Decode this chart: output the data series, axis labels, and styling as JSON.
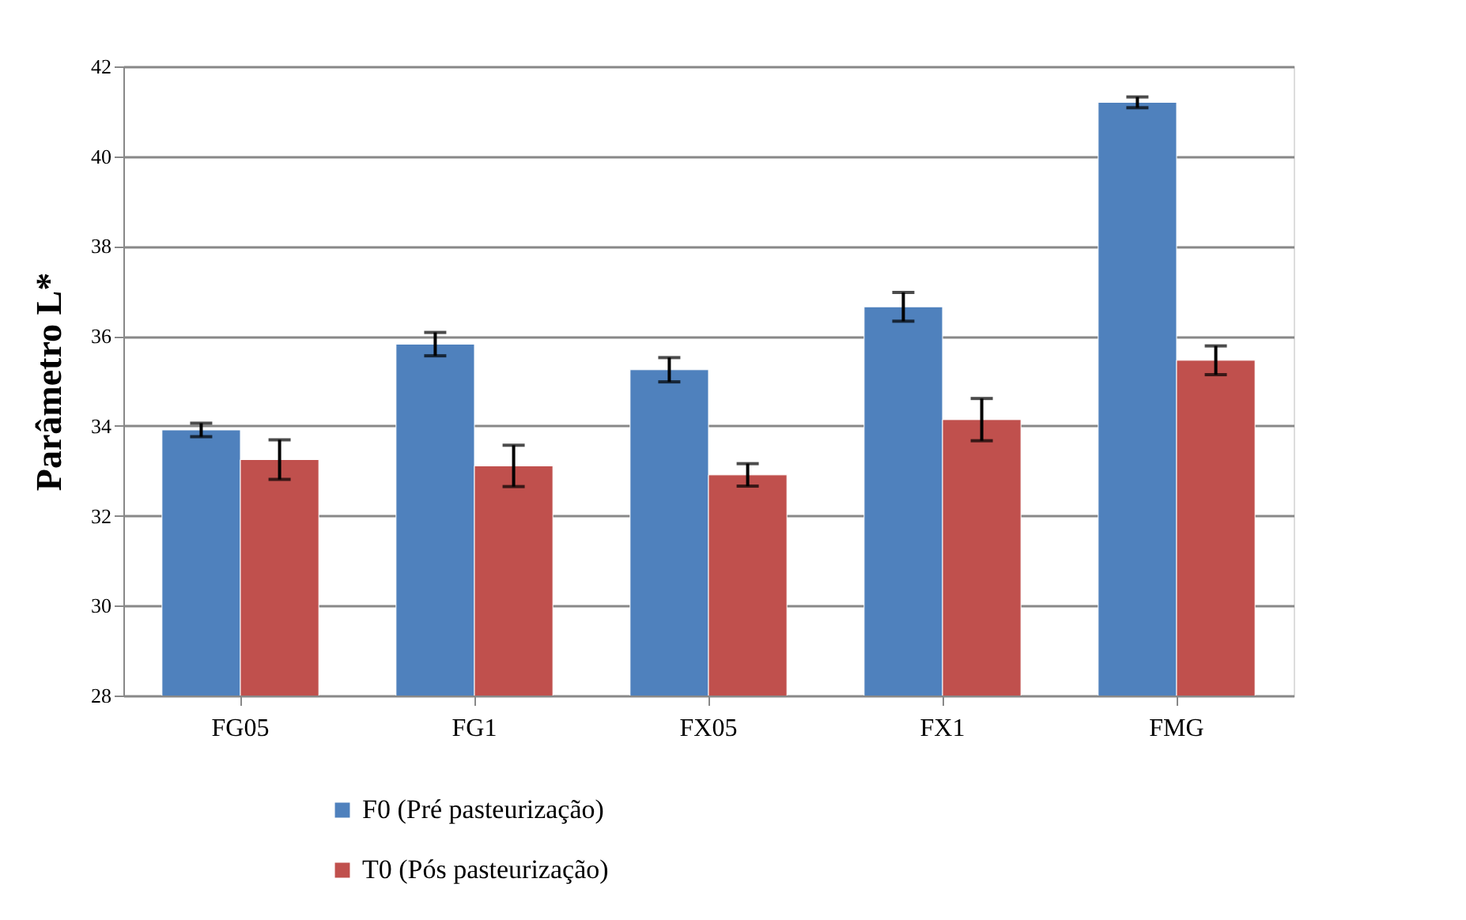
{
  "chart_data": {
    "type": "bar",
    "ylabel": "Parâmetro L*",
    "categories": [
      "FG05",
      "FG1",
      "FX05",
      "FX1",
      "FMG"
    ],
    "series": [
      {
        "name": "F0 (Pré pasteurização)",
        "color": "#4f81bd",
        "values": [
          33.91,
          35.82,
          35.25,
          36.65,
          41.2
        ],
        "errors": [
          0.15,
          0.26,
          0.27,
          0.32,
          0.12
        ]
      },
      {
        "name": "T0 (Pós pasteurização)",
        "color": "#c0504d",
        "values": [
          33.25,
          33.11,
          32.91,
          34.14,
          35.46
        ],
        "errors": [
          0.44,
          0.46,
          0.25,
          0.47,
          0.32
        ]
      }
    ],
    "ylim": [
      28,
      42
    ],
    "yticks": [
      28,
      30,
      32,
      34,
      36,
      38,
      40,
      42
    ],
    "grid": "y",
    "legend": "bottom"
  }
}
